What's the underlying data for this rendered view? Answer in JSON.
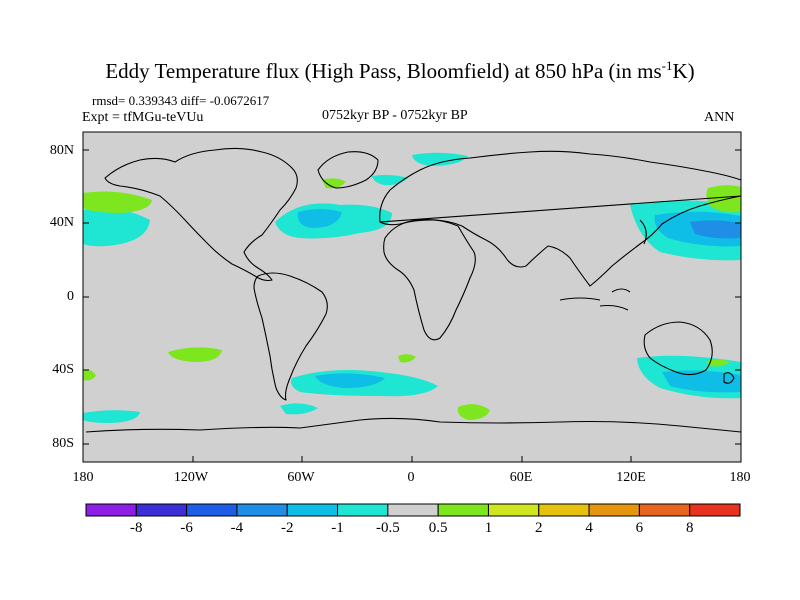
{
  "title": {
    "main": "Eddy Temperature flux (High Pass, Bloomfield) at 850 hPa (in ms",
    "sup": "-1",
    "tail": "K)"
  },
  "stats": "rmsd= 0.339343  diff= -0.0672617",
  "experiment": "Expt = tfMGu-teVUu",
  "period": "0752kyr BP - 0752kyr BP",
  "season": "ANN",
  "lat_labels": [
    "80N",
    "40N",
    "0",
    "40S",
    "80S"
  ],
  "lon_labels": [
    "180",
    "120W",
    "60W",
    "0",
    "60E",
    "120E",
    "180"
  ],
  "colorbar": {
    "labels": [
      "-8",
      "-6",
      "-4",
      "-2",
      "-1",
      "-0.5",
      "0.5",
      "1",
      "2",
      "4",
      "6",
      "8"
    ],
    "colors": [
      "#8c1ee6",
      "#3a2ed6",
      "#1e5ee6",
      "#1e8ee6",
      "#0ebee6",
      "#1ee6d2",
      "#d0d0d0",
      "#7ee61e",
      "#cee61e",
      "#e6c20e",
      "#e6960e",
      "#e6661e",
      "#e6321e"
    ]
  },
  "colors": {
    "land_ocean_background": "#d0d0d0",
    "coastline": "#000000"
  },
  "icons": [
    "world-coastline-map"
  ]
}
